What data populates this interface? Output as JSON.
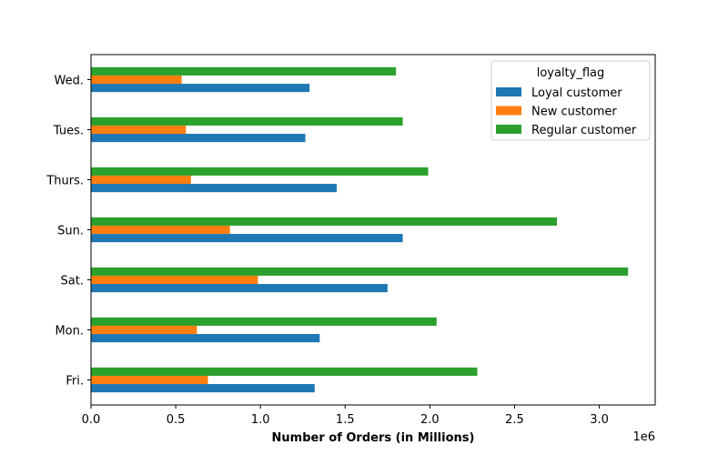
{
  "chart_data": {
    "type": "bar",
    "orientation": "horizontal",
    "categories": [
      "Fri.",
      "Mon.",
      "Sat.",
      "Sun.",
      "Thurs.",
      "Tues.",
      "Wed."
    ],
    "series": [
      {
        "name": "Loyal customer",
        "color": "#1f77b4",
        "values": [
          1320000,
          1350000,
          1750000,
          1840000,
          1450000,
          1265000,
          1290000
        ]
      },
      {
        "name": "New customer",
        "color": "#ff7f0e",
        "values": [
          690000,
          625000,
          985000,
          820000,
          590000,
          560000,
          535000
        ]
      },
      {
        "name": "Regular customer",
        "color": "#2ca02c",
        "values": [
          2280000,
          2040000,
          3170000,
          2750000,
          1990000,
          1840000,
          1800000
        ]
      }
    ],
    "xlabel": "Number of Orders (in Millions)",
    "ylabel": "",
    "xlim": [
      0,
      3330000
    ],
    "x_ticks": [
      0,
      500000,
      1000000,
      1500000,
      2000000,
      2500000,
      3000000
    ],
    "x_tick_labels": [
      "0.0",
      "0.5",
      "1.0",
      "1.5",
      "2.0",
      "2.5",
      "3.0"
    ],
    "x_offset_label": "1e6",
    "legend": {
      "title": "loyalty_flag",
      "position": "top-right"
    },
    "grid": false
  }
}
